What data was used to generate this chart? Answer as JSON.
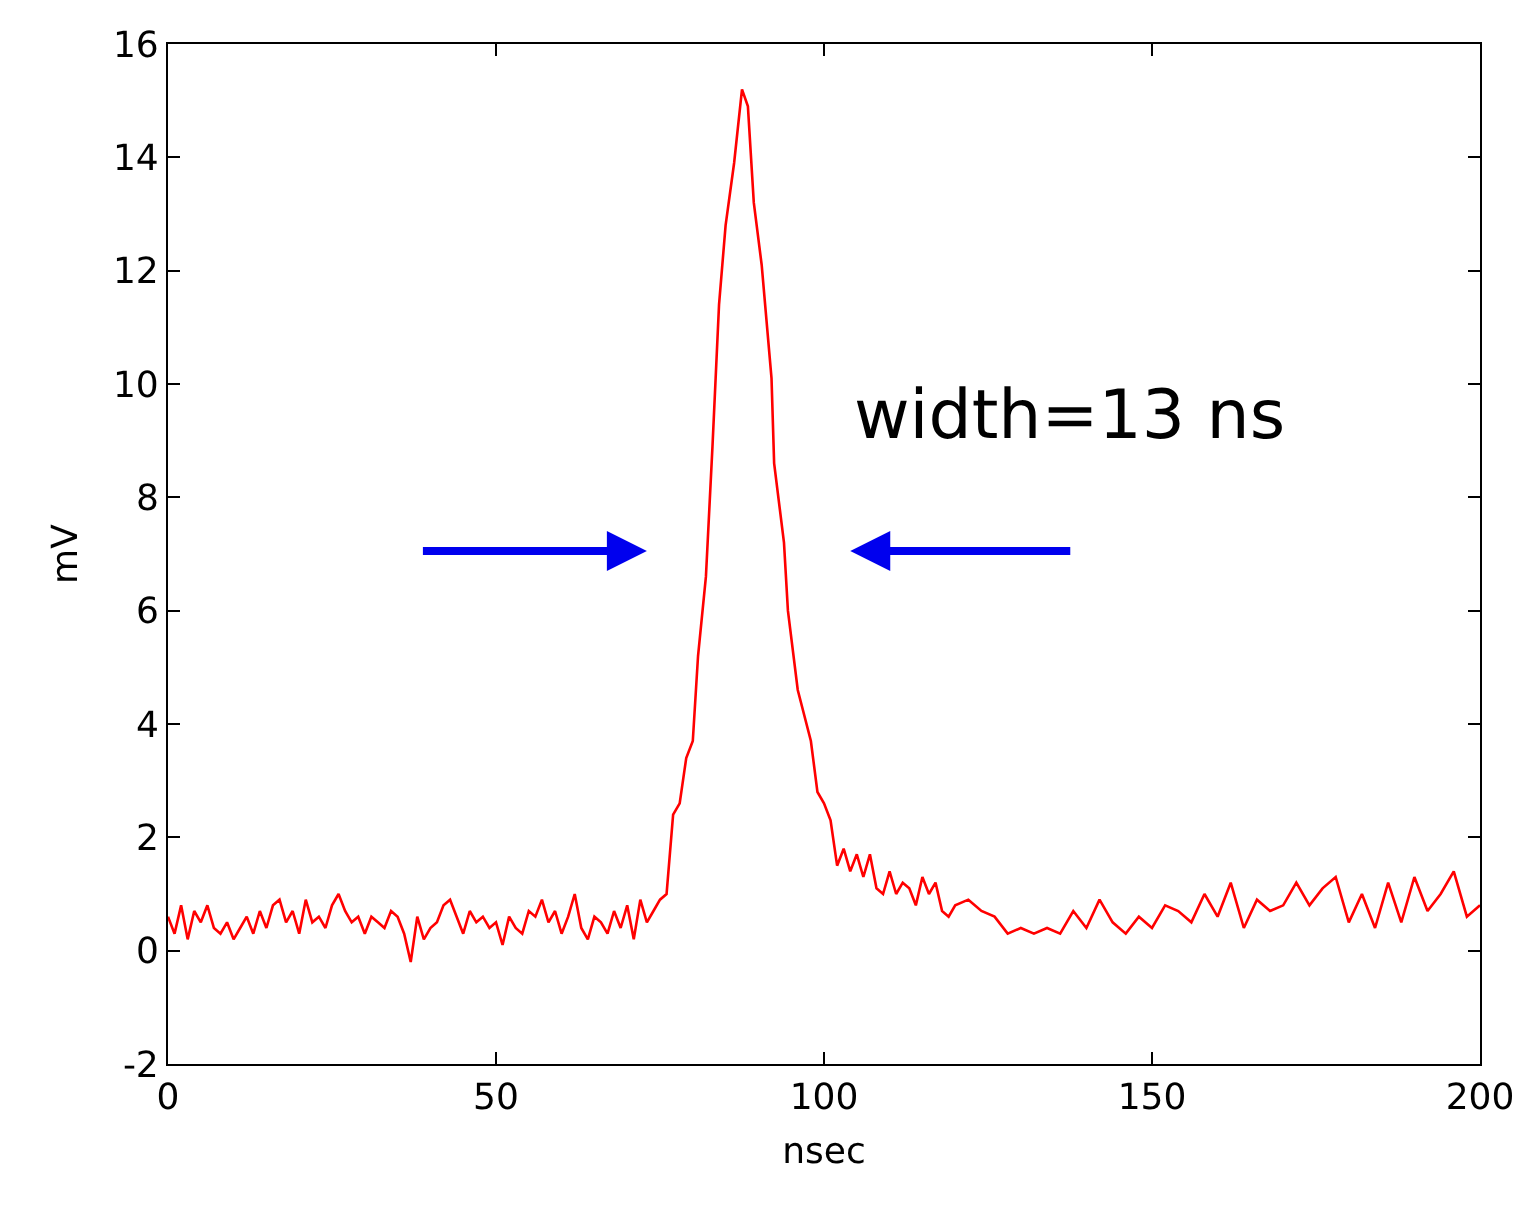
{
  "chart_data": {
    "type": "line",
    "xlabel": "nsec",
    "ylabel": "mV",
    "annotations": [
      "width=13 ns"
    ],
    "xlim": [
      0,
      200
    ],
    "xticks": [
      0,
      50,
      100,
      150,
      200
    ],
    "ylim": [
      -2,
      16
    ],
    "yticks": [
      -2,
      0,
      2,
      4,
      6,
      8,
      10,
      12,
      14,
      16
    ],
    "line_style": "solid",
    "series": [
      {
        "color": "#ff0000",
        "x": [
          0,
          1,
          2,
          3,
          4,
          5,
          6,
          7,
          8,
          9,
          10,
          11,
          12,
          13,
          14,
          15,
          16,
          17,
          18,
          19,
          20,
          21,
          22,
          23,
          24,
          25,
          26,
          27,
          28,
          29,
          30,
          31,
          32,
          33,
          34,
          35,
          36,
          37,
          38,
          39,
          40,
          41,
          42,
          43,
          44,
          45,
          46,
          47,
          48,
          49,
          50,
          51,
          52,
          53,
          54,
          55,
          56,
          57,
          58,
          59,
          60,
          61,
          62,
          63,
          64,
          65,
          66,
          67,
          68,
          69,
          70,
          71,
          72,
          73,
          74,
          75,
          76,
          77,
          78,
          79,
          80,
          80.8,
          82,
          83,
          84,
          85,
          86.3,
          87.5,
          88.4,
          89.3,
          90.5,
          92,
          92.4,
          93.9,
          94.5,
          96,
          98,
          99,
          100,
          101,
          102,
          103,
          104,
          105,
          106,
          107,
          108,
          109,
          110,
          111,
          112,
          113,
          114,
          115,
          116,
          117,
          118,
          119,
          120,
          122,
          124,
          126,
          128,
          130,
          132,
          134,
          136,
          138,
          140,
          142,
          144,
          146,
          148,
          150,
          152,
          154,
          156,
          158,
          160,
          162,
          164,
          166,
          168,
          170,
          172,
          174,
          176,
          178,
          180,
          182,
          184,
          186,
          188,
          190,
          192,
          194,
          196,
          198,
          200
        ],
        "values": [
          0.6,
          0.3,
          0.8,
          0.2,
          0.7,
          0.5,
          0.8,
          0.4,
          0.3,
          0.5,
          0.2,
          0.4,
          0.6,
          0.3,
          0.7,
          0.4,
          0.8,
          0.9,
          0.5,
          0.7,
          0.3,
          0.9,
          0.5,
          0.6,
          0.4,
          0.8,
          1.0,
          0.7,
          0.5,
          0.6,
          0.3,
          0.6,
          0.5,
          0.4,
          0.7,
          0.6,
          0.3,
          -0.2,
          0.6,
          0.2,
          0.4,
          0.5,
          0.8,
          0.9,
          0.6,
          0.3,
          0.7,
          0.5,
          0.6,
          0.4,
          0.5,
          0.1,
          0.6,
          0.4,
          0.3,
          0.7,
          0.6,
          0.9,
          0.5,
          0.7,
          0.3,
          0.6,
          1.0,
          0.4,
          0.2,
          0.6,
          0.5,
          0.3,
          0.7,
          0.4,
          0.8,
          0.2,
          0.9,
          0.5,
          0.7,
          0.9,
          1.0,
          2.4,
          2.6,
          3.4,
          3.7,
          5.2,
          6.6,
          8.9,
          11.4,
          12.8,
          13.9,
          15.2,
          14.9,
          13.2,
          12.1,
          10.1,
          8.6,
          7.2,
          6.0,
          4.6,
          3.7,
          2.8,
          2.6,
          2.3,
          1.5,
          1.8,
          1.4,
          1.7,
          1.3,
          1.7,
          1.1,
          1.0,
          1.4,
          1.0,
          1.2,
          1.1,
          0.8,
          1.3,
          1.0,
          1.2,
          0.7,
          0.6,
          0.8,
          0.9,
          0.7,
          0.6,
          0.3,
          0.4,
          0.3,
          0.4,
          0.3,
          0.7,
          0.4,
          0.9,
          0.5,
          0.3,
          0.6,
          0.4,
          0.8,
          0.7,
          0.5,
          1.0,
          0.6,
          1.2,
          0.4,
          0.9,
          0.7,
          0.8,
          1.2,
          0.8,
          1.1,
          1.3,
          0.5,
          1.0,
          0.4,
          1.2,
          0.5,
          1.3,
          0.7,
          1.0,
          1.4,
          0.6,
          0.8
        ]
      }
    ]
  }
}
